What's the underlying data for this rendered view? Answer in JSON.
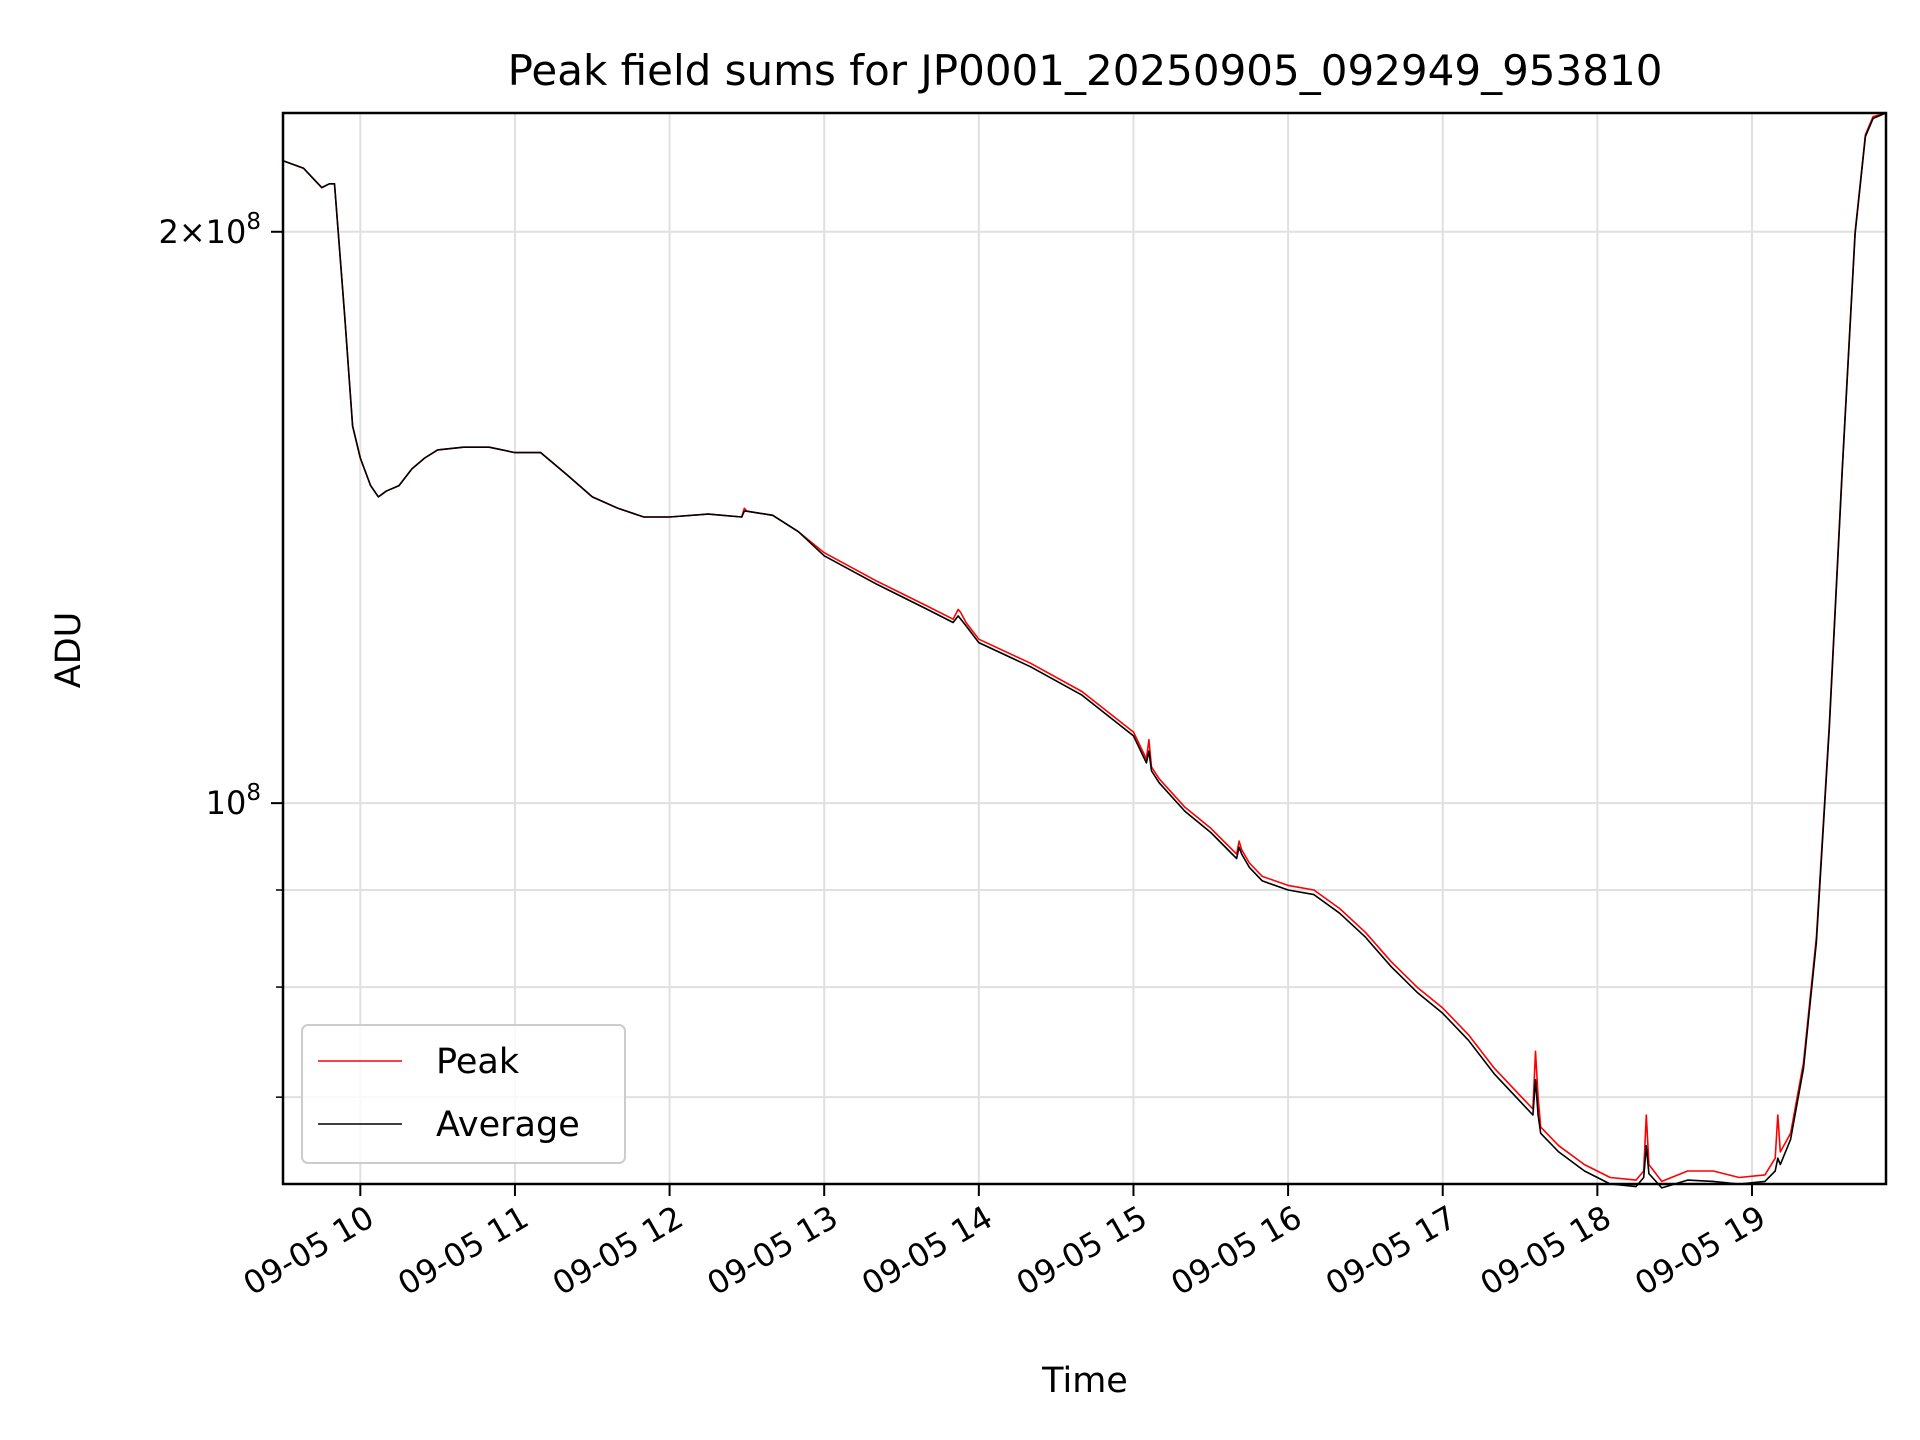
{
  "chart_data": {
    "type": "line",
    "title": "Peak field sums for JP0001_20250905_092949_953810",
    "xlabel": "Time",
    "ylabel": "ADU",
    "x_scale": "time",
    "y_scale": "log",
    "xlim": [
      "2025-09-05 09:30",
      "2025-09-05 19:52"
    ],
    "ylim": [
      63000000,
      231000000
    ],
    "grid": true,
    "legend_position": "lower-left",
    "x_ticks": [
      {
        "time": "2025-09-05 10:00",
        "label": "09-05 10"
      },
      {
        "time": "2025-09-05 11:00",
        "label": "09-05 11"
      },
      {
        "time": "2025-09-05 12:00",
        "label": "09-05 12"
      },
      {
        "time": "2025-09-05 13:00",
        "label": "09-05 13"
      },
      {
        "time": "2025-09-05 14:00",
        "label": "09-05 14"
      },
      {
        "time": "2025-09-05 15:00",
        "label": "09-05 15"
      },
      {
        "time": "2025-09-05 16:00",
        "label": "09-05 16"
      },
      {
        "time": "2025-09-05 17:00",
        "label": "09-05 17"
      },
      {
        "time": "2025-09-05 18:00",
        "label": "09-05 18"
      },
      {
        "time": "2025-09-05 19:00",
        "label": "09-05 19"
      }
    ],
    "y_major_ticks": [
      {
        "value": 100000000,
        "base": "10",
        "mantissa": "",
        "exponent": "8"
      },
      {
        "value": 200000000,
        "base": "10",
        "mantissa": "2",
        "exponent": "8"
      }
    ],
    "y_minor_ticks": [
      70000000,
      80000000,
      90000000
    ],
    "series": [
      {
        "name": "Peak",
        "color": "#ff0000",
        "x": [
          "2025-09-05 09:30",
          "2025-09-05 09:38",
          "2025-09-05 09:45",
          "2025-09-05 09:48",
          "2025-09-05 09:50",
          "2025-09-05 09:54",
          "2025-09-05 09:57",
          "2025-09-05 10:00",
          "2025-09-05 10:04",
          "2025-09-05 10:07",
          "2025-09-05 10:10",
          "2025-09-05 10:15",
          "2025-09-05 10:20",
          "2025-09-05 10:25",
          "2025-09-05 10:30",
          "2025-09-05 10:40",
          "2025-09-05 10:50",
          "2025-09-05 11:00",
          "2025-09-05 11:10",
          "2025-09-05 11:20",
          "2025-09-05 11:30",
          "2025-09-05 11:40",
          "2025-09-05 11:50",
          "2025-09-05 12:00",
          "2025-09-05 12:15",
          "2025-09-05 12:28",
          "2025-09-05 12:29",
          "2025-09-05 12:30",
          "2025-09-05 12:40",
          "2025-09-05 12:50",
          "2025-09-05 13:00",
          "2025-09-05 13:20",
          "2025-09-05 13:40",
          "2025-09-05 13:50",
          "2025-09-05 13:52",
          "2025-09-05 13:53",
          "2025-09-05 13:55",
          "2025-09-05 14:00",
          "2025-09-05 14:20",
          "2025-09-05 14:40",
          "2025-09-05 15:00",
          "2025-09-05 15:05",
          "2025-09-05 15:06",
          "2025-09-05 15:07",
          "2025-09-05 15:10",
          "2025-09-05 15:20",
          "2025-09-05 15:30",
          "2025-09-05 15:40",
          "2025-09-05 15:41",
          "2025-09-05 15:42",
          "2025-09-05 15:45",
          "2025-09-05 15:50",
          "2025-09-05 16:00",
          "2025-09-05 16:10",
          "2025-09-05 16:20",
          "2025-09-05 16:30",
          "2025-09-05 16:40",
          "2025-09-05 16:50",
          "2025-09-05 17:00",
          "2025-09-05 17:10",
          "2025-09-05 17:20",
          "2025-09-05 17:35",
          "2025-09-05 17:36",
          "2025-09-05 17:37",
          "2025-09-05 17:38",
          "2025-09-05 17:45",
          "2025-09-05 17:55",
          "2025-09-05 18:05",
          "2025-09-05 18:15",
          "2025-09-05 18:18",
          "2025-09-05 18:19",
          "2025-09-05 18:20",
          "2025-09-05 18:25",
          "2025-09-05 18:35",
          "2025-09-05 18:45",
          "2025-09-05 18:55",
          "2025-09-05 19:05",
          "2025-09-05 19:09",
          "2025-09-05 19:10",
          "2025-09-05 19:11",
          "2025-09-05 19:15",
          "2025-09-05 19:20",
          "2025-09-05 19:25",
          "2025-09-05 19:30",
          "2025-09-05 19:35",
          "2025-09-05 19:40",
          "2025-09-05 19:44",
          "2025-09-05 19:47",
          "2025-09-05 19:52"
        ],
        "y": [
          218000000,
          216000000,
          211000000,
          212000000,
          212000000,
          180000000,
          158000000,
          152000000,
          147000000,
          145000000,
          146000000,
          147000000,
          150000000,
          152000000,
          153500000,
          154000000,
          154000000,
          153000000,
          153000000,
          149000000,
          145000000,
          143000000,
          141500000,
          141500000,
          142000000,
          141500000,
          143000000,
          142500000,
          141800000,
          139000000,
          135500000,
          131000000,
          127000000,
          125000000,
          126500000,
          126000000,
          124500000,
          122000000,
          118500000,
          114500000,
          109000000,
          105500000,
          108000000,
          104500000,
          103000000,
          99500000,
          97000000,
          94000000,
          95500000,
          94500000,
          93000000,
          91500000,
          90500000,
          90000000,
          88000000,
          85500000,
          82500000,
          80000000,
          78000000,
          75500000,
          72500000,
          69000000,
          74000000,
          70000000,
          67500000,
          66000000,
          64500000,
          63500000,
          63300000,
          64000000,
          68500000,
          64500000,
          63200000,
          64000000,
          64000000,
          63500000,
          63700000,
          65000000,
          68500000,
          65500000,
          67000000,
          73000000,
          85000000,
          110000000,
          150000000,
          200000000,
          225000000,
          230000000,
          231000000
        ]
      },
      {
        "name": "Average",
        "color": "#000000",
        "x": [
          "2025-09-05 09:30",
          "2025-09-05 09:38",
          "2025-09-05 09:45",
          "2025-09-05 09:48",
          "2025-09-05 09:50",
          "2025-09-05 09:54",
          "2025-09-05 09:57",
          "2025-09-05 10:00",
          "2025-09-05 10:04",
          "2025-09-05 10:07",
          "2025-09-05 10:10",
          "2025-09-05 10:15",
          "2025-09-05 10:20",
          "2025-09-05 10:25",
          "2025-09-05 10:30",
          "2025-09-05 10:40",
          "2025-09-05 10:50",
          "2025-09-05 11:00",
          "2025-09-05 11:10",
          "2025-09-05 11:20",
          "2025-09-05 11:30",
          "2025-09-05 11:40",
          "2025-09-05 11:50",
          "2025-09-05 12:00",
          "2025-09-05 12:15",
          "2025-09-05 12:28",
          "2025-09-05 12:29",
          "2025-09-05 12:30",
          "2025-09-05 12:40",
          "2025-09-05 12:50",
          "2025-09-05 13:00",
          "2025-09-05 13:20",
          "2025-09-05 13:40",
          "2025-09-05 13:50",
          "2025-09-05 13:52",
          "2025-09-05 13:53",
          "2025-09-05 13:55",
          "2025-09-05 14:00",
          "2025-09-05 14:20",
          "2025-09-05 14:40",
          "2025-09-05 15:00",
          "2025-09-05 15:05",
          "2025-09-05 15:06",
          "2025-09-05 15:07",
          "2025-09-05 15:10",
          "2025-09-05 15:20",
          "2025-09-05 15:30",
          "2025-09-05 15:40",
          "2025-09-05 15:41",
          "2025-09-05 15:42",
          "2025-09-05 15:45",
          "2025-09-05 15:50",
          "2025-09-05 16:00",
          "2025-09-05 16:10",
          "2025-09-05 16:20",
          "2025-09-05 16:30",
          "2025-09-05 16:40",
          "2025-09-05 16:50",
          "2025-09-05 17:00",
          "2025-09-05 17:10",
          "2025-09-05 17:20",
          "2025-09-05 17:35",
          "2025-09-05 17:36",
          "2025-09-05 17:37",
          "2025-09-05 17:38",
          "2025-09-05 17:45",
          "2025-09-05 17:55",
          "2025-09-05 18:05",
          "2025-09-05 18:15",
          "2025-09-05 18:18",
          "2025-09-05 18:19",
          "2025-09-05 18:20",
          "2025-09-05 18:25",
          "2025-09-05 18:35",
          "2025-09-05 18:45",
          "2025-09-05 18:55",
          "2025-09-05 19:05",
          "2025-09-05 19:09",
          "2025-09-05 19:10",
          "2025-09-05 19:11",
          "2025-09-05 19:15",
          "2025-09-05 19:20",
          "2025-09-05 19:25",
          "2025-09-05 19:30",
          "2025-09-05 19:35",
          "2025-09-05 19:40",
          "2025-09-05 19:44",
          "2025-09-05 19:47",
          "2025-09-05 19:52"
        ],
        "y": [
          218000000,
          216000000,
          211000000,
          212000000,
          212000000,
          180000000,
          158000000,
          152000000,
          147000000,
          145000000,
          146000000,
          147000000,
          150000000,
          152000000,
          153500000,
          154000000,
          154000000,
          153000000,
          153000000,
          149000000,
          145000000,
          143000000,
          141500000,
          141500000,
          142000000,
          141500000,
          142500000,
          142500000,
          141800000,
          139000000,
          135000000,
          130500000,
          126500000,
          124500000,
          125500000,
          125000000,
          124000000,
          121500000,
          118000000,
          114000000,
          108500000,
          105000000,
          106500000,
          104000000,
          102500000,
          99000000,
          96500000,
          93500000,
          94800000,
          94000000,
          92500000,
          91000000,
          90000000,
          89500000,
          87500000,
          85000000,
          82000000,
          79500000,
          77500000,
          75000000,
          72000000,
          68500000,
          71500000,
          68500000,
          67000000,
          65500000,
          64000000,
          63000000,
          62800000,
          63500000,
          66000000,
          63800000,
          62700000,
          63300000,
          63200000,
          63000000,
          63200000,
          64000000,
          65000000,
          64500000,
          66500000,
          72500000,
          84500000,
          109500000,
          149500000,
          199500000,
          224500000,
          229500000,
          231000000
        ]
      }
    ]
  }
}
